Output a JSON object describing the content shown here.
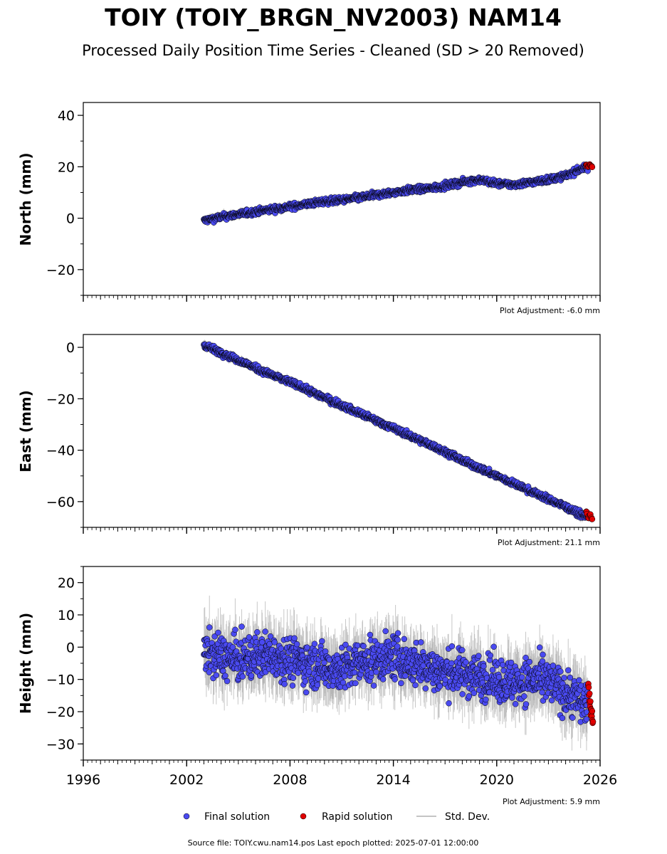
{
  "title": "TOIY (TOIY_BRGN_NV2003) NAM14",
  "subtitle": "Processed Daily Position Time Series - Cleaned (SD > 20 Removed)",
  "source_note": "Source file: TOIY.cwu.nam14.pos  Last epoch plotted: 2025-07-01 12:00:00",
  "legend": {
    "final": "Final solution",
    "rapid": "Rapid solution",
    "std": "Std. Dev."
  },
  "colors": {
    "final": "#4a4af0",
    "rapid": "#e00000",
    "std": "#b0b0b0",
    "marker_edge": "#000000"
  },
  "chart_data": [
    {
      "type": "scatter",
      "ylabel": "North (mm)",
      "adjustment": "Plot Adjustment: -6.0 mm",
      "xlim": [
        1996,
        2026
      ],
      "ylim": [
        -30,
        45
      ],
      "yticks": [
        -20,
        0,
        20,
        40
      ],
      "ytick_labels": [
        "−20",
        "0",
        "20",
        "40"
      ],
      "series": [
        {
          "name": "Final solution",
          "x": [
            2003.0,
            2004.0,
            2005.0,
            2006.0,
            2007.0,
            2008.0,
            2009.0,
            2010.0,
            2011.0,
            2012.0,
            2013.0,
            2014.0,
            2015.0,
            2016.0,
            2017.0,
            2018.0,
            2019.0,
            2020.0,
            2021.0,
            2022.0,
            2023.0,
            2024.0,
            2025.0
          ],
          "y": [
            -1,
            0.5,
            1.5,
            2.5,
            3.5,
            4.5,
            5.5,
            6.5,
            7,
            8,
            9,
            10,
            11,
            11.5,
            12.5,
            14,
            15,
            13.5,
            13,
            14,
            15,
            16.5,
            19.5
          ],
          "scatter": 1.2
        },
        {
          "name": "Rapid solution",
          "x": [
            2025.2,
            2025.3,
            2025.4,
            2025.5
          ],
          "y": [
            20.5,
            20.0,
            20.8,
            20.2
          ],
          "scatter": 0.4
        }
      ]
    },
    {
      "type": "scatter",
      "ylabel": "East (mm)",
      "adjustment": "Plot Adjustment: 21.1 mm",
      "xlim": [
        1996,
        2026
      ],
      "ylim": [
        -70,
        5
      ],
      "yticks": [
        -60,
        -40,
        -20,
        0
      ],
      "ytick_labels": [
        "−60",
        "−40",
        "−20",
        "0"
      ],
      "series": [
        {
          "name": "Final solution",
          "x": [
            2003.0,
            2004.0,
            2005.0,
            2006.0,
            2007.0,
            2008.0,
            2009.0,
            2010.0,
            2011.0,
            2012.0,
            2013.0,
            2014.0,
            2015.0,
            2016.0,
            2017.0,
            2018.0,
            2019.0,
            2020.0,
            2021.0,
            2022.0,
            2023.0,
            2024.0,
            2025.0
          ],
          "y": [
            1,
            -2,
            -5,
            -8,
            -11,
            -13.5,
            -16.5,
            -19.5,
            -22.5,
            -25.5,
            -28.5,
            -31.5,
            -34.5,
            -37.5,
            -40.5,
            -44,
            -47,
            -50,
            -53,
            -56,
            -59,
            -62,
            -65.5
          ],
          "scatter": 1.2
        },
        {
          "name": "Rapid solution",
          "x": [
            2025.2,
            2025.3,
            2025.4,
            2025.5
          ],
          "y": [
            -64,
            -66,
            -65,
            -66.5
          ],
          "scatter": 0.5
        }
      ]
    },
    {
      "type": "scatter",
      "ylabel": "Height (mm)",
      "adjustment": "Plot Adjustment: 5.9 mm",
      "xlim": [
        1996,
        2026
      ],
      "ylim": [
        -35,
        25
      ],
      "yticks": [
        -30,
        -20,
        -10,
        0,
        10,
        20
      ],
      "ytick_labels": [
        "−30",
        "−20",
        "−10",
        "0",
        "10",
        "20"
      ],
      "series": [
        {
          "name": "Final solution",
          "x": [
            2003.0,
            2004.0,
            2005.0,
            2006.0,
            2007.0,
            2008.0,
            2009.0,
            2010.0,
            2011.0,
            2012.0,
            2013.0,
            2014.0,
            2015.0,
            2016.0,
            2017.0,
            2018.0,
            2019.0,
            2020.0,
            2021.0,
            2022.0,
            2023.0,
            2024.0,
            2025.0
          ],
          "y": [
            -2,
            -3,
            -4,
            -3,
            -2,
            -4,
            -5,
            -6,
            -7,
            -5,
            -4,
            -3,
            -5,
            -6,
            -8,
            -8,
            -9,
            -10,
            -11,
            -10,
            -11,
            -14,
            -17
          ],
          "scatter": 7
        },
        {
          "name": "Rapid solution",
          "x": [
            2025.3,
            2025.35,
            2025.4,
            2025.45,
            2025.5,
            2025.55
          ],
          "y": [
            -12,
            -16,
            -18,
            -20,
            -21,
            -23
          ],
          "scatter": 1
        }
      ]
    }
  ],
  "xticks": [
    1996,
    2002,
    2008,
    2014,
    2020,
    2026
  ],
  "xtick_labels": [
    "1996",
    "2002",
    "2008",
    "2014",
    "2020",
    "2026"
  ]
}
